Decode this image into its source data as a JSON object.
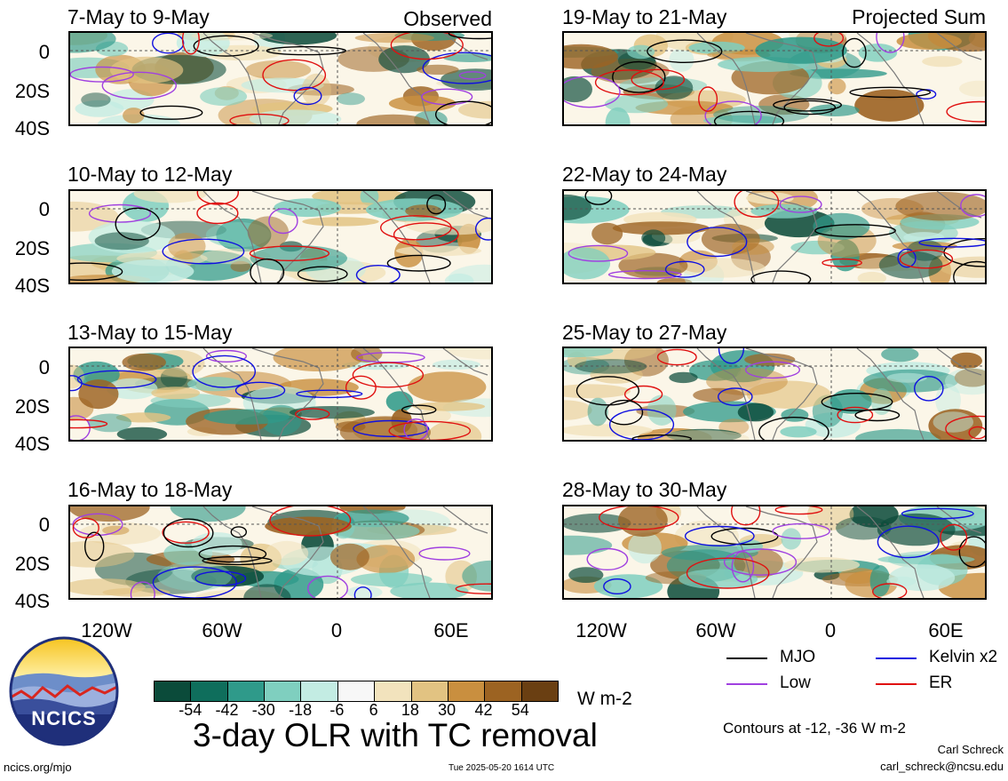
{
  "header": {
    "left_label": "Observed",
    "right_label": "Projected Sum"
  },
  "panels": [
    {
      "title": "7-May to 9-May",
      "column": "left"
    },
    {
      "title": "10-May to 12-May",
      "column": "left"
    },
    {
      "title": "13-May to 15-May",
      "column": "left"
    },
    {
      "title": "16-May to 18-May",
      "column": "left"
    },
    {
      "title": "19-May to 21-May",
      "column": "right"
    },
    {
      "title": "22-May to 24-May",
      "column": "right"
    },
    {
      "title": "25-May to 27-May",
      "column": "right"
    },
    {
      "title": "28-May to 30-May",
      "column": "right"
    }
  ],
  "axes": {
    "y_ticks": [
      "0",
      "20S",
      "40S"
    ],
    "x_ticks": [
      "120W",
      "60W",
      "0",
      "60E"
    ]
  },
  "colorbar": {
    "ticks": [
      "-54",
      "-42",
      "-30",
      "-18",
      "-6",
      "6",
      "18",
      "30",
      "42",
      "54"
    ],
    "colors": [
      "#0b4b3a",
      "#0f6e5c",
      "#2f9a8a",
      "#7fcfbf",
      "#c3ece3",
      "#f7f7f7",
      "#f2e3bd",
      "#e2c382",
      "#c98f3f",
      "#9c6322",
      "#6a3f12"
    ],
    "unit": "W m-2"
  },
  "title": "3-day OLR with TC removal",
  "legend": {
    "items": [
      {
        "label": "MJO",
        "color": "#000000"
      },
      {
        "label": "Kelvin x2",
        "color": "#1010e0"
      },
      {
        "label": "Low",
        "color": "#a040e0"
      },
      {
        "label": "ER",
        "color": "#e01010"
      }
    ],
    "contours_note": "Contours at -12, -36 W m-2"
  },
  "credits": {
    "logo_text": "NCICS",
    "website": "ncics.org/mjo",
    "timestamp": "Tue 2025-05-20 1614 UTC",
    "author": "Carl Schreck",
    "email": "carl_schreck@ncsu.edu"
  }
}
